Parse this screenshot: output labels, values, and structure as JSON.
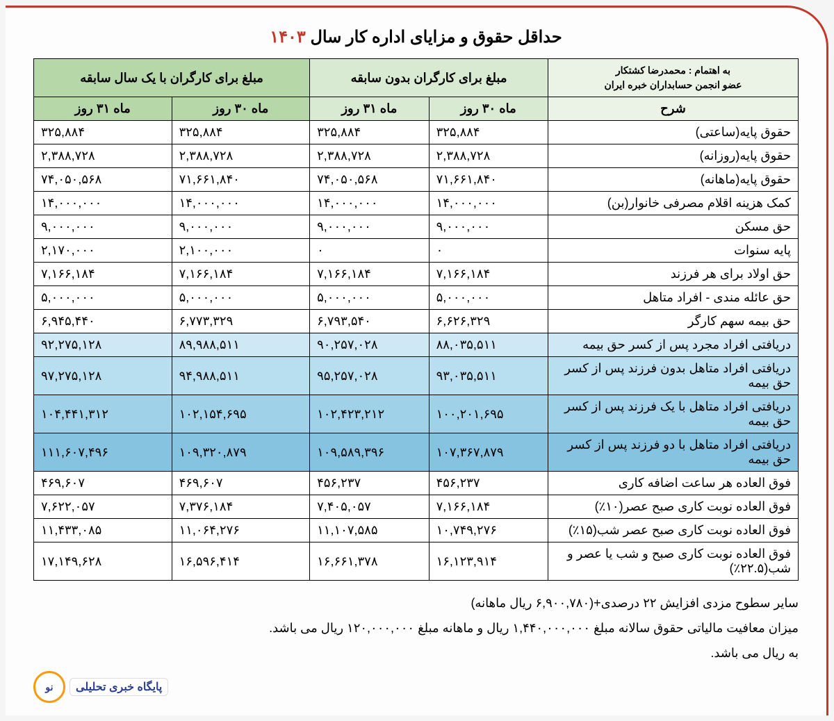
{
  "title_prefix": "حداقل حقوق و مزایای اداره کار سال ",
  "title_year": "۱۴۰۳",
  "credit_line1": "به اهتمام : محمدرضا کشتکار",
  "credit_line2": "عضو انجمن حسابداران خبره ایران",
  "headers": {
    "desc": "شرح",
    "group_none": "مبلغ برای کارگران بدون سابقه",
    "group_one": "مبلغ برای کارگران با یک سال سابقه",
    "m30": "ماه ۳۰ روز",
    "m31": "ماه ۳۱ روز"
  },
  "rows": [
    {
      "desc": "حقوق پایه(ساعتی)",
      "n30": "۳۲۵,۸۸۴",
      "n31": "۳۲۵,۸۸۴",
      "o30": "۳۲۵,۸۸۴",
      "o31": "۳۲۵,۸۸۴",
      "hl": ""
    },
    {
      "desc": "حقوق پایه(روزانه)",
      "n30": "۲,۳۸۸,۷۲۸",
      "n31": "۲,۳۸۸,۷۲۸",
      "o30": "۲,۳۸۸,۷۲۸",
      "o31": "۲,۳۸۸,۷۲۸",
      "hl": ""
    },
    {
      "desc": "حقوق پایه(ماهانه)",
      "n30": "۷۱,۶۶۱,۸۴۰",
      "n31": "۷۴,۰۵۰,۵۶۸",
      "o30": "۷۱,۶۶۱,۸۴۰",
      "o31": "۷۴,۰۵۰,۵۶۸",
      "hl": ""
    },
    {
      "desc": "کمک هزینه اقلام مصرفی خانوار(بن)",
      "n30": "۱۴,۰۰۰,۰۰۰",
      "n31": "۱۴,۰۰۰,۰۰۰",
      "o30": "۱۴,۰۰۰,۰۰۰",
      "o31": "۱۴,۰۰۰,۰۰۰",
      "hl": ""
    },
    {
      "desc": "حق مسکن",
      "n30": "۹,۰۰۰,۰۰۰",
      "n31": "۹,۰۰۰,۰۰۰",
      "o30": "۹,۰۰۰,۰۰۰",
      "o31": "۹,۰۰۰,۰۰۰",
      "hl": ""
    },
    {
      "desc": "پایه سنوات",
      "n30": "۰",
      "n31": "۰",
      "o30": "۲,۱۰۰,۰۰۰",
      "o31": "۲,۱۷۰,۰۰۰",
      "hl": ""
    },
    {
      "desc": "حق اولاد برای هر فرزند",
      "n30": "۷,۱۶۶,۱۸۴",
      "n31": "۷,۱۶۶,۱۸۴",
      "o30": "۷,۱۶۶,۱۸۴",
      "o31": "۷,۱۶۶,۱۸۴",
      "hl": ""
    },
    {
      "desc": "حق عائله مندی - افراد متاهل",
      "n30": "۵,۰۰۰,۰۰۰",
      "n31": "۵,۰۰۰,۰۰۰",
      "o30": "۵,۰۰۰,۰۰۰",
      "o31": "۵,۰۰۰,۰۰۰",
      "hl": ""
    },
    {
      "desc": "حق بیمه سهم کارگر",
      "n30": "۶,۶۲۶,۳۲۹",
      "n31": "۶,۷۹۳,۵۴۰",
      "o30": "۶,۷۷۳,۳۲۹",
      "o31": "۶,۹۴۵,۴۴۰",
      "hl": ""
    },
    {
      "desc": "دریافتی افراد مجرد پس از کسر حق بیمه",
      "n30": "۸۸,۰۳۵,۵۱۱",
      "n31": "۹۰,۲۵۷,۰۲۸",
      "o30": "۸۹,۹۸۸,۵۱۱",
      "o31": "۹۲,۲۷۵,۱۲۸",
      "hl": "hl1"
    },
    {
      "desc": "دریافتی افراد متاهل بدون فرزند پس از کسر حق بیمه",
      "n30": "۹۳,۰۳۵,۵۱۱",
      "n31": "۹۵,۲۵۷,۰۲۸",
      "o30": "۹۴,۹۸۸,۵۱۱",
      "o31": "۹۷,۲۷۵,۱۲۸",
      "hl": "hl2"
    },
    {
      "desc": "دریافتی افراد متاهل با یک فرزند پس از کسر حق بیمه",
      "n30": "۱۰۰,۲۰۱,۶۹۵",
      "n31": "۱۰۲,۴۲۳,۲۱۲",
      "o30": "۱۰۲,۱۵۴,۶۹۵",
      "o31": "۱۰۴,۴۴۱,۳۱۲",
      "hl": "hl3"
    },
    {
      "desc": "دریافتی افراد متاهل با دو فرزند پس از کسر حق بیمه",
      "n30": "۱۰۷,۳۶۷,۸۷۹",
      "n31": "۱۰۹,۵۸۹,۳۹۶",
      "o30": "۱۰۹,۳۲۰,۸۷۹",
      "o31": "۱۱۱,۶۰۷,۴۹۶",
      "hl": "hl4"
    },
    {
      "desc": "فوق العاده هر ساعت اضافه کاری",
      "n30": "۴۵۶,۲۳۷",
      "n31": "۴۵۶,۲۳۷",
      "o30": "۴۶۹,۶۰۷",
      "o31": "۴۶۹,۶۰۷",
      "hl": ""
    },
    {
      "desc": "فوق العاده نوبت کاری صبح عصر(۱۰٪)",
      "n30": "۷,۱۶۶,۱۸۴",
      "n31": "۷,۴۰۵,۰۵۷",
      "o30": "۷,۳۷۶,۱۸۴",
      "o31": "۷,۶۲۲,۰۵۷",
      "hl": ""
    },
    {
      "desc": "فوق العاده نوبت کاری صبح عصر شب(۱۵٪)",
      "n30": "۱۰,۷۴۹,۲۷۶",
      "n31": "۱۱,۱۰۷,۵۸۵",
      "o30": "۱۱,۰۶۴,۲۷۶",
      "o31": "۱۱,۴۳۳,۰۸۵",
      "hl": ""
    },
    {
      "desc": "فوق العاده نوبت کاری صبح و شب یا عصر و شب(۲۲.۵٪)",
      "n30": "۱۶,۱۲۳,۹۱۴",
      "n31": "۱۶,۶۶۱,۳۷۸",
      "o30": "۱۶,۵۹۶,۴۱۴",
      "o31": "۱۷,۱۴۹,۶۲۸",
      "hl": ""
    }
  ],
  "notes": [
    "سایر سطوح مزدی افزایش ۲۲ درصدی+(۶,۹۰۰,۷۸۰ ریال ماهانه)",
    "میزان معافیت مالیاتی حقوق سالانه مبلغ ۱,۴۴۰,۰۰۰,۰۰۰ ریال و ماهانه مبلغ ۱۲۰,۰۰۰,۰۰۰ ریال می باشد.",
    "به ریال می باشد."
  ],
  "logo_text": "پایگاه خبری تحلیلی",
  "logo_brand": "روزنو"
}
